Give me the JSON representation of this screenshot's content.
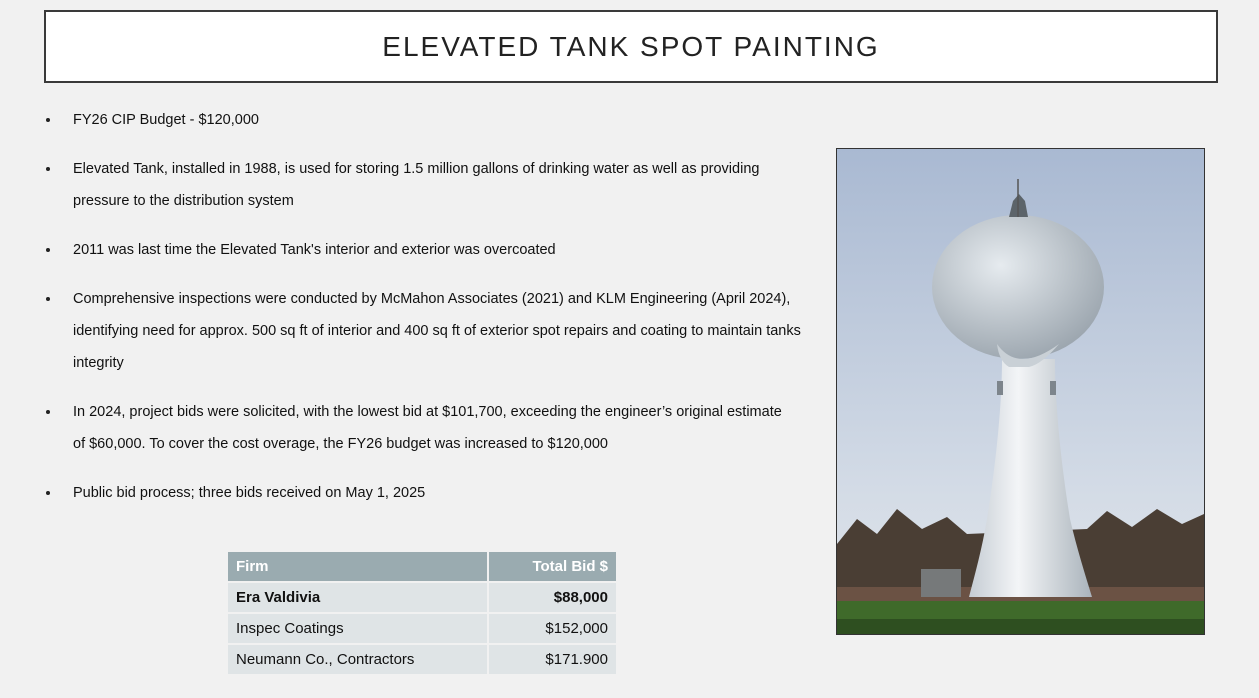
{
  "header": {
    "title": "ELEVATED TANK SPOT PAINTING"
  },
  "bullets": [
    "FY26 CIP Budget - $120,000",
    "Elevated Tank, installed in 1988, is used for storing 1.5 million gallons of drinking water as well as providing pressure to the distribution system",
    "2011 was last time the Elevated Tank's interior and exterior was overcoated",
    "Comprehensive inspections were conducted by McMahon Associates (2021) and KLM Engineering (April 2024), identifying need for approx. 500 sq ft of interior and 400 sq ft of exterior spot repairs and coating to maintain tanks integrity",
    "In 2024, project bids were solicited, with the lowest bid at $101,700, exceeding the engineer’s original estimate of $60,000. To cover the cost overage, the FY26 budget was increased to $120,000",
    "Public bid process; three bids received on May 1, 2025"
  ],
  "table": {
    "headers": [
      "Firm",
      "Total Bid $"
    ],
    "rows": [
      [
        "Era Valdivia",
        "$88,000"
      ],
      [
        "Inspec Coatings",
        "$152,000"
      ],
      [
        "Neumann Co., Contractors",
        "$171.900"
      ]
    ]
  }
}
